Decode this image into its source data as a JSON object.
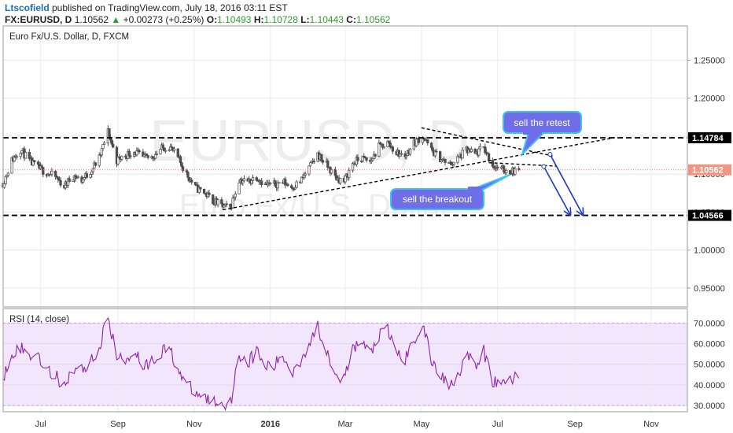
{
  "header": {
    "author": "Ltscofield",
    "published": " published on TradingView.com, July 18, 2016 03:11 EST",
    "symbol": "FX:EURUSD, D",
    "price": "1.10562",
    "arrow": "▲",
    "change": "+0.00273 (+0.25%)",
    "o_label": "O:",
    "o_value": "1.10493",
    "h_label": "H:",
    "h_value": "1.10728",
    "l_label": "L:",
    "l_value": "1.10443",
    "c_label": "C:",
    "c_value": "1.10562"
  },
  "main_title": "Euro Fx/U.S. Dollar, D, FXCM",
  "watermark": {
    "symbol": "EURUSD, D",
    "name": "Euro Fx/U.S. Dollar"
  },
  "rsi_title": "RSI (14, close)",
  "annotations": {
    "retest": "sell the retest",
    "breakout": "sell the breakout"
  },
  "colors": {
    "up": "#2e9e2e",
    "candle": "#4d4d4d",
    "rsi_line": "#8e24aa",
    "rsi_band": "#f1e6fb",
    "bubble": "#6f6ee8",
    "bubble_border": "#3bc4ef",
    "arrow": "#1838c8",
    "price_flag": "#f29682"
  },
  "chart_data": [
    {
      "type": "candlestick",
      "title": "Euro Fx/U.S. Dollar, D, FXCM",
      "symbol": "FX:EURUSD",
      "timeframe": "D",
      "x_range": [
        "2015-06-01",
        "2016-11-30"
      ],
      "ylim": [
        0.925,
        1.295
      ],
      "y_ticks": [
        "1.25000",
        "1.20000",
        "1.15000",
        "1.10000",
        "1.05000",
        "1.00000",
        "0.95000"
      ],
      "x_ticks": [
        "Jul",
        "Sep",
        "Nov",
        "2016",
        "Mar",
        "May",
        "Jul",
        "Sep",
        "Nov"
      ],
      "x_tick_dates": [
        "2015-07-01",
        "2015-09-01",
        "2015-11-01",
        "2016-01-01",
        "2016-03-01",
        "2016-05-01",
        "2016-07-01",
        "2016-09-01",
        "2016-11-01"
      ],
      "last_price": 1.10562,
      "price_labels": [
        {
          "value": 1.14784,
          "label": "1.14784"
        },
        {
          "value": 1.04566,
          "label": "1.04566"
        },
        {
          "value": 1.10562,
          "label": "1.10562"
        }
      ],
      "close_path": [
        [
          "2015-06-01",
          1.088
        ],
        [
          "2015-06-08",
          1.118
        ],
        [
          "2015-06-15",
          1.133
        ],
        [
          "2015-06-22",
          1.117
        ],
        [
          "2015-06-29",
          1.108
        ],
        [
          "2015-07-06",
          1.102
        ],
        [
          "2015-07-13",
          1.096
        ],
        [
          "2015-07-20",
          1.084
        ],
        [
          "2015-07-27",
          1.098
        ],
        [
          "2015-08-03",
          1.092
        ],
        [
          "2015-08-10",
          1.104
        ],
        [
          "2015-08-17",
          1.121
        ],
        [
          "2015-08-24",
          1.156
        ],
        [
          "2015-08-31",
          1.118
        ],
        [
          "2015-09-07",
          1.125
        ],
        [
          "2015-09-14",
          1.13
        ],
        [
          "2015-09-21",
          1.121
        ],
        [
          "2015-09-28",
          1.122
        ],
        [
          "2015-10-05",
          1.133
        ],
        [
          "2015-10-12",
          1.137
        ],
        [
          "2015-10-19",
          1.121
        ],
        [
          "2015-10-26",
          1.1
        ],
        [
          "2015-11-02",
          1.082
        ],
        [
          "2015-11-09",
          1.076
        ],
        [
          "2015-11-16",
          1.065
        ],
        [
          "2015-11-23",
          1.058
        ],
        [
          "2015-11-30",
          1.055
        ],
        [
          "2015-12-07",
          1.093
        ],
        [
          "2015-12-14",
          1.09
        ],
        [
          "2015-12-21",
          1.097
        ],
        [
          "2015-12-28",
          1.086
        ],
        [
          "2016-01-04",
          1.086
        ],
        [
          "2016-01-11",
          1.09
        ],
        [
          "2016-01-18",
          1.083
        ],
        [
          "2016-01-25",
          1.09
        ],
        [
          "2016-02-01",
          1.108
        ],
        [
          "2016-02-08",
          1.126
        ],
        [
          "2016-02-15",
          1.112
        ],
        [
          "2016-02-22",
          1.096
        ],
        [
          "2016-02-29",
          1.09
        ],
        [
          "2016-03-07",
          1.114
        ],
        [
          "2016-03-14",
          1.121
        ],
        [
          "2016-03-21",
          1.116
        ],
        [
          "2016-03-28",
          1.136
        ],
        [
          "2016-04-04",
          1.141
        ],
        [
          "2016-04-11",
          1.128
        ],
        [
          "2016-04-18",
          1.124
        ],
        [
          "2016-04-25",
          1.141
        ],
        [
          "2016-05-02",
          1.15
        ],
        [
          "2016-05-09",
          1.131
        ],
        [
          "2016-05-16",
          1.121
        ],
        [
          "2016-05-23",
          1.112
        ],
        [
          "2016-05-30",
          1.12
        ],
        [
          "2016-06-06",
          1.131
        ],
        [
          "2016-06-13",
          1.126
        ],
        [
          "2016-06-20",
          1.135
        ],
        [
          "2016-06-27",
          1.112
        ],
        [
          "2016-07-04",
          1.106
        ],
        [
          "2016-07-11",
          1.104
        ],
        [
          "2016-07-18",
          1.1056
        ]
      ],
      "lines": [
        {
          "kind": "horizontal-dashed",
          "value": 1.14784,
          "from": "2015-06-01",
          "to": "2016-11-30"
        },
        {
          "kind": "horizontal-dashed",
          "value": 1.04566,
          "from": "2015-06-01",
          "to": "2016-11-30"
        },
        {
          "kind": "dashed",
          "p1": [
            "2015-11-24",
            1.053
          ],
          "p2": [
            "2016-10-03",
            1.148
          ]
        },
        {
          "kind": "dashed",
          "p1": [
            "2016-05-01",
            1.161
          ],
          "p2": [
            "2016-08-14",
            1.124
          ]
        },
        {
          "kind": "dashed",
          "p1": [
            "2016-06-24",
            1.115
          ],
          "p2": [
            "2016-08-17",
            1.1105
          ]
        }
      ],
      "arrows": [
        {
          "from": [
            "2016-08-07",
            1.11
          ],
          "to": [
            "2016-08-28",
            1.047
          ]
        },
        {
          "from": [
            "2016-08-12",
            1.126
          ],
          "to": [
            "2016-09-07",
            1.047
          ]
        }
      ]
    },
    {
      "type": "line",
      "title": "RSI (14, close)",
      "x_range": [
        "2015-06-01",
        "2016-11-30"
      ],
      "ylim": [
        27,
        77
      ],
      "y_ticks": [
        "70.0000",
        "60.0000",
        "50.0000",
        "40.0000",
        "30.0000"
      ],
      "band": [
        30,
        70
      ],
      "series": [
        {
          "values": [
            [
              "2015-06-01",
              44
            ],
            [
              "2015-06-08",
              56
            ],
            [
              "2015-06-15",
              58
            ],
            [
              "2015-06-22",
              54
            ],
            [
              "2015-06-29",
              55
            ],
            [
              "2015-07-06",
              47
            ],
            [
              "2015-07-13",
              44
            ],
            [
              "2015-07-20",
              40
            ],
            [
              "2015-07-27",
              48
            ],
            [
              "2015-08-03",
              47
            ],
            [
              "2015-08-10",
              52
            ],
            [
              "2015-08-17",
              57
            ],
            [
              "2015-08-24",
              74
            ],
            [
              "2015-08-31",
              53
            ],
            [
              "2015-09-07",
              52
            ],
            [
              "2015-09-14",
              57
            ],
            [
              "2015-09-21",
              50
            ],
            [
              "2015-09-28",
              51
            ],
            [
              "2015-10-05",
              56
            ],
            [
              "2015-10-12",
              58
            ],
            [
              "2015-10-19",
              48
            ],
            [
              "2015-10-26",
              40
            ],
            [
              "2015-11-02",
              36
            ],
            [
              "2015-11-09",
              34
            ],
            [
              "2015-11-16",
              32
            ],
            [
              "2015-11-23",
              31
            ],
            [
              "2015-11-30",
              31
            ],
            [
              "2015-12-07",
              55
            ],
            [
              "2015-12-14",
              51
            ],
            [
              "2015-12-21",
              56
            ],
            [
              "2015-12-28",
              49
            ],
            [
              "2016-01-04",
              49
            ],
            [
              "2016-01-11",
              54
            ],
            [
              "2016-01-18",
              46
            ],
            [
              "2016-01-25",
              52
            ],
            [
              "2016-02-01",
              60
            ],
            [
              "2016-02-08",
              68
            ],
            [
              "2016-02-15",
              57
            ],
            [
              "2016-02-22",
              47
            ],
            [
              "2016-02-29",
              42
            ],
            [
              "2016-03-07",
              57
            ],
            [
              "2016-03-14",
              61
            ],
            [
              "2016-03-21",
              55
            ],
            [
              "2016-03-28",
              64
            ],
            [
              "2016-04-04",
              66
            ],
            [
              "2016-04-11",
              56
            ],
            [
              "2016-04-18",
              52
            ],
            [
              "2016-04-25",
              62
            ],
            [
              "2016-05-02",
              69
            ],
            [
              "2016-05-09",
              52
            ],
            [
              "2016-05-16",
              45
            ],
            [
              "2016-05-23",
              40
            ],
            [
              "2016-05-30",
              45
            ],
            [
              "2016-06-06",
              55
            ],
            [
              "2016-06-13",
              48
            ],
            [
              "2016-06-20",
              56
            ],
            [
              "2016-06-27",
              42
            ],
            [
              "2016-07-04",
              40
            ],
            [
              "2016-07-11",
              43
            ],
            [
              "2016-07-18",
              44
            ]
          ]
        }
      ]
    }
  ]
}
